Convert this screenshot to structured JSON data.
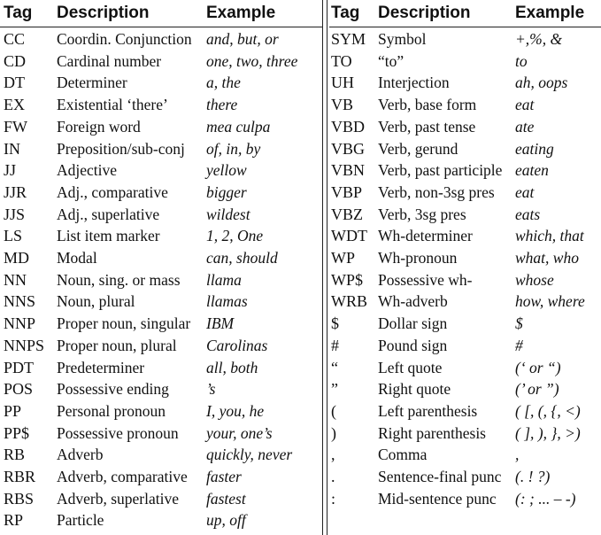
{
  "left_table": {
    "headers": {
      "tag": "Tag",
      "description": "Description",
      "example": "Example"
    },
    "rows": [
      {
        "tag": "CC",
        "description": "Coordin. Conjunction",
        "example": "and, but, or"
      },
      {
        "tag": "CD",
        "description": "Cardinal number",
        "example": "one, two, three"
      },
      {
        "tag": "DT",
        "description": "Determiner",
        "example": "a, the"
      },
      {
        "tag": "EX",
        "description": "Existential ‘there’",
        "example": "there"
      },
      {
        "tag": "FW",
        "description": "Foreign word",
        "example": "mea culpa"
      },
      {
        "tag": "IN",
        "description": "Preposition/sub-conj",
        "example": "of, in, by"
      },
      {
        "tag": "JJ",
        "description": "Adjective",
        "example": "yellow"
      },
      {
        "tag": "JJR",
        "description": "Adj., comparative",
        "example": "bigger"
      },
      {
        "tag": "JJS",
        "description": "Adj., superlative",
        "example": "wildest"
      },
      {
        "tag": "LS",
        "description": "List item marker",
        "example": "1, 2, One"
      },
      {
        "tag": "MD",
        "description": "Modal",
        "example": "can, should"
      },
      {
        "tag": "NN",
        "description": "Noun, sing. or mass",
        "example": "llama"
      },
      {
        "tag": "NNS",
        "description": "Noun, plural",
        "example": "llamas"
      },
      {
        "tag": "NNP",
        "description": "Proper noun, singular",
        "example": "IBM"
      },
      {
        "tag": "NNPS",
        "description": "Proper noun, plural",
        "example": "Carolinas"
      },
      {
        "tag": "PDT",
        "description": "Predeterminer",
        "example": "all, both"
      },
      {
        "tag": "POS",
        "description": "Possessive ending",
        "example": "’s"
      },
      {
        "tag": "PP",
        "description": "Personal pronoun",
        "example": "I, you, he"
      },
      {
        "tag": "PP$",
        "description": "Possessive pronoun",
        "example": "your, one’s"
      },
      {
        "tag": "RB",
        "description": "Adverb",
        "example": "quickly, never"
      },
      {
        "tag": "RBR",
        "description": "Adverb, comparative",
        "example": "faster"
      },
      {
        "tag": "RBS",
        "description": "Adverb, superlative",
        "example": "fastest"
      },
      {
        "tag": "RP",
        "description": "Particle",
        "example": "up, off"
      }
    ]
  },
  "right_table": {
    "headers": {
      "tag": "Tag",
      "description": "Description",
      "example": "Example"
    },
    "rows": [
      {
        "tag": "SYM",
        "description": "Symbol",
        "example": "+,%, &"
      },
      {
        "tag": "TO",
        "description": "“to”",
        "example": "to"
      },
      {
        "tag": "UH",
        "description": "Interjection",
        "example": "ah, oops"
      },
      {
        "tag": "VB",
        "description": "Verb, base form",
        "example": "eat"
      },
      {
        "tag": "VBD",
        "description": "Verb, past tense",
        "example": "ate"
      },
      {
        "tag": "VBG",
        "description": "Verb, gerund",
        "example": "eating"
      },
      {
        "tag": "VBN",
        "description": "Verb, past participle",
        "example": "eaten"
      },
      {
        "tag": "VBP",
        "description": "Verb, non-3sg pres",
        "example": "eat"
      },
      {
        "tag": "VBZ",
        "description": "Verb, 3sg pres",
        "example": "eats"
      },
      {
        "tag": "WDT",
        "description": "Wh-determiner",
        "example": "which, that"
      },
      {
        "tag": "WP",
        "description": "Wh-pronoun",
        "example": "what, who"
      },
      {
        "tag": "WP$",
        "description": "Possessive wh-",
        "example": "whose"
      },
      {
        "tag": "WRB",
        "description": "Wh-adverb",
        "example": "how, where"
      },
      {
        "tag": "$",
        "description": "Dollar sign",
        "example": "$"
      },
      {
        "tag": "#",
        "description": "Pound sign",
        "example": "#"
      },
      {
        "tag": "“",
        "description": "Left quote",
        "example": "(‘ or “)"
      },
      {
        "tag": "”",
        "description": "Right quote",
        "example": "(’ or ”)"
      },
      {
        "tag": "(",
        "description": "Left parenthesis",
        "example": "( [, (, {, <)"
      },
      {
        "tag": ")",
        "description": "Right parenthesis",
        "example": "( ], ), }, >)"
      },
      {
        "tag": ",",
        "description": "Comma",
        "example": ","
      },
      {
        "tag": ".",
        "description": "Sentence-final punc",
        "example": "(. ! ?)"
      },
      {
        "tag": ":",
        "description": "Mid-sentence punc",
        "example": "(: ; ... – -)"
      }
    ]
  }
}
